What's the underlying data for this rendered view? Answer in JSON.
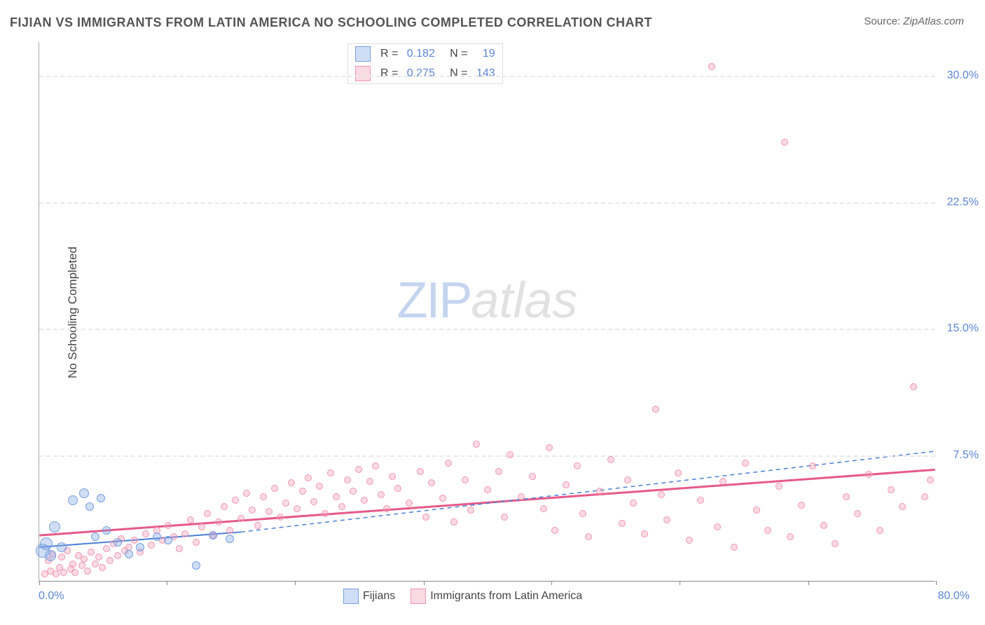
{
  "title": "FIJIAN VS IMMIGRANTS FROM LATIN AMERICA NO SCHOOLING COMPLETED CORRELATION CHART",
  "source_label": "Source:",
  "source_value": "ZipAtlas.com",
  "ylabel": "No Schooling Completed",
  "watermark_zip": "ZIP",
  "watermark_atlas": "atlas",
  "chart": {
    "type": "scatter",
    "xlim": [
      0,
      80
    ],
    "ylim": [
      0,
      32
    ],
    "xtick_positions": [
      0,
      11.4,
      22.8,
      34.3,
      45.7,
      57.1,
      68.6,
      80
    ],
    "yticks": [
      {
        "v": 30.0,
        "label": "30.0%"
      },
      {
        "v": 22.5,
        "label": "22.5%"
      },
      {
        "v": 15.0,
        "label": "15.0%"
      },
      {
        "v": 7.5,
        "label": "7.5%"
      }
    ],
    "xmin_label": "0.0%",
    "xmax_label": "80.0%",
    "background_color": "#ffffff",
    "grid_color": "#e8e8e8",
    "axis_color": "#888888",
    "tick_color": "#5b87d6"
  },
  "series": {
    "fijians": {
      "label": "Fijians",
      "fill": "rgba(120,160,225,0.35)",
      "stroke": "#7aa0e0",
      "R": "0.182",
      "N": "19",
      "trend": {
        "x1": 0,
        "y1": 2.0,
        "x2": 18,
        "y2": 2.9,
        "dash_x1": 18,
        "dash_y1": 2.9,
        "dash_x2": 80,
        "dash_y2": 7.7,
        "color": "#4b7fd6",
        "width": 2
      },
      "points": [
        {
          "x": 0.3,
          "y": 1.8,
          "r": 20
        },
        {
          "x": 0.6,
          "y": 2.2,
          "r": 18
        },
        {
          "x": 1.0,
          "y": 1.5,
          "r": 16
        },
        {
          "x": 1.4,
          "y": 3.2,
          "r": 16
        },
        {
          "x": 2.0,
          "y": 2.0,
          "r": 14
        },
        {
          "x": 3.0,
          "y": 4.8,
          "r": 14
        },
        {
          "x": 4.0,
          "y": 5.2,
          "r": 14
        },
        {
          "x": 4.5,
          "y": 4.4,
          "r": 12
        },
        {
          "x": 5.0,
          "y": 2.6,
          "r": 12
        },
        {
          "x": 5.5,
          "y": 4.9,
          "r": 12
        },
        {
          "x": 6.0,
          "y": 3.0,
          "r": 12
        },
        {
          "x": 7.0,
          "y": 2.3,
          "r": 12
        },
        {
          "x": 8.0,
          "y": 1.6,
          "r": 12
        },
        {
          "x": 9.0,
          "y": 2.0,
          "r": 12
        },
        {
          "x": 10.5,
          "y": 2.6,
          "r": 12
        },
        {
          "x": 11.5,
          "y": 2.4,
          "r": 12
        },
        {
          "x": 14.0,
          "y": 0.9,
          "r": 12
        },
        {
          "x": 15.5,
          "y": 2.7,
          "r": 12
        },
        {
          "x": 17.0,
          "y": 2.5,
          "r": 12
        }
      ]
    },
    "immigrants": {
      "label": "Immigrants from Latin America",
      "fill": "rgba(240,150,175,0.35)",
      "stroke": "#f096af",
      "R": "0.275",
      "N": "143",
      "trend": {
        "x1": 0,
        "y1": 2.7,
        "x2": 80,
        "y2": 6.6,
        "color": "#e55a88",
        "width": 3
      },
      "points": [
        {
          "x": 0.5,
          "y": 0.4,
          "r": 10
        },
        {
          "x": 0.8,
          "y": 1.2,
          "r": 10
        },
        {
          "x": 1.0,
          "y": 0.6,
          "r": 10
        },
        {
          "x": 1.2,
          "y": 1.6,
          "r": 10
        },
        {
          "x": 1.5,
          "y": 0.4,
          "r": 10
        },
        {
          "x": 1.8,
          "y": 0.8,
          "r": 10
        },
        {
          "x": 2.0,
          "y": 1.4,
          "r": 10
        },
        {
          "x": 2.2,
          "y": 0.5,
          "r": 10
        },
        {
          "x": 2.5,
          "y": 1.8,
          "r": 10
        },
        {
          "x": 2.8,
          "y": 0.7,
          "r": 10
        },
        {
          "x": 3.0,
          "y": 1.0,
          "r": 10
        },
        {
          "x": 3.2,
          "y": 0.5,
          "r": 10
        },
        {
          "x": 3.5,
          "y": 1.5,
          "r": 10
        },
        {
          "x": 3.8,
          "y": 0.9,
          "r": 10
        },
        {
          "x": 4.0,
          "y": 1.3,
          "r": 10
        },
        {
          "x": 4.3,
          "y": 0.6,
          "r": 10
        },
        {
          "x": 4.6,
          "y": 1.7,
          "r": 10
        },
        {
          "x": 5.0,
          "y": 1.0,
          "r": 10
        },
        {
          "x": 5.3,
          "y": 1.4,
          "r": 10
        },
        {
          "x": 5.6,
          "y": 0.8,
          "r": 10
        },
        {
          "x": 6.0,
          "y": 1.9,
          "r": 10
        },
        {
          "x": 6.3,
          "y": 1.2,
          "r": 10
        },
        {
          "x": 6.6,
          "y": 2.2,
          "r": 10
        },
        {
          "x": 7.0,
          "y": 1.5,
          "r": 10
        },
        {
          "x": 7.3,
          "y": 2.5,
          "r": 10
        },
        {
          "x": 7.6,
          "y": 1.8,
          "r": 10
        },
        {
          "x": 8.0,
          "y": 2.0,
          "r": 10
        },
        {
          "x": 8.5,
          "y": 2.4,
          "r": 10
        },
        {
          "x": 9.0,
          "y": 1.7,
          "r": 10
        },
        {
          "x": 9.5,
          "y": 2.8,
          "r": 10
        },
        {
          "x": 10.0,
          "y": 2.1,
          "r": 10
        },
        {
          "x": 10.5,
          "y": 3.0,
          "r": 10
        },
        {
          "x": 11.0,
          "y": 2.4,
          "r": 10
        },
        {
          "x": 11.5,
          "y": 3.3,
          "r": 10
        },
        {
          "x": 12.0,
          "y": 2.6,
          "r": 10
        },
        {
          "x": 12.5,
          "y": 1.9,
          "r": 10
        },
        {
          "x": 13.0,
          "y": 2.8,
          "r": 10
        },
        {
          "x": 13.5,
          "y": 3.6,
          "r": 10
        },
        {
          "x": 14.0,
          "y": 2.3,
          "r": 10
        },
        {
          "x": 14.5,
          "y": 3.2,
          "r": 10
        },
        {
          "x": 15.0,
          "y": 4.0,
          "r": 10
        },
        {
          "x": 15.5,
          "y": 2.7,
          "r": 10
        },
        {
          "x": 16.0,
          "y": 3.5,
          "r": 10
        },
        {
          "x": 16.5,
          "y": 4.4,
          "r": 10
        },
        {
          "x": 17.0,
          "y": 3.0,
          "r": 10
        },
        {
          "x": 17.5,
          "y": 4.8,
          "r": 10
        },
        {
          "x": 18.0,
          "y": 3.7,
          "r": 10
        },
        {
          "x": 18.5,
          "y": 5.2,
          "r": 10
        },
        {
          "x": 19.0,
          "y": 4.2,
          "r": 10
        },
        {
          "x": 19.5,
          "y": 3.3,
          "r": 10
        },
        {
          "x": 20.0,
          "y": 5.0,
          "r": 10
        },
        {
          "x": 20.5,
          "y": 4.1,
          "r": 10
        },
        {
          "x": 21.0,
          "y": 5.5,
          "r": 10
        },
        {
          "x": 21.5,
          "y": 3.8,
          "r": 10
        },
        {
          "x": 22.0,
          "y": 4.6,
          "r": 10
        },
        {
          "x": 22.5,
          "y": 5.8,
          "r": 10
        },
        {
          "x": 23.0,
          "y": 4.3,
          "r": 10
        },
        {
          "x": 23.5,
          "y": 5.3,
          "r": 10
        },
        {
          "x": 24.0,
          "y": 6.1,
          "r": 10
        },
        {
          "x": 24.5,
          "y": 4.7,
          "r": 10
        },
        {
          "x": 25.0,
          "y": 5.6,
          "r": 10
        },
        {
          "x": 25.5,
          "y": 4.0,
          "r": 10
        },
        {
          "x": 26.0,
          "y": 6.4,
          "r": 10
        },
        {
          "x": 26.5,
          "y": 5.0,
          "r": 10
        },
        {
          "x": 27.0,
          "y": 4.4,
          "r": 10
        },
        {
          "x": 27.5,
          "y": 6.0,
          "r": 10
        },
        {
          "x": 28.0,
          "y": 5.3,
          "r": 10
        },
        {
          "x": 28.5,
          "y": 6.6,
          "r": 10
        },
        {
          "x": 29.0,
          "y": 4.8,
          "r": 10
        },
        {
          "x": 29.5,
          "y": 5.9,
          "r": 10
        },
        {
          "x": 30.0,
          "y": 6.8,
          "r": 10
        },
        {
          "x": 30.5,
          "y": 5.1,
          "r": 10
        },
        {
          "x": 31.0,
          "y": 4.3,
          "r": 10
        },
        {
          "x": 31.5,
          "y": 6.2,
          "r": 10
        },
        {
          "x": 32.0,
          "y": 5.5,
          "r": 10
        },
        {
          "x": 33.0,
          "y": 4.6,
          "r": 10
        },
        {
          "x": 34.0,
          "y": 6.5,
          "r": 10
        },
        {
          "x": 34.5,
          "y": 3.8,
          "r": 10
        },
        {
          "x": 35.0,
          "y": 5.8,
          "r": 10
        },
        {
          "x": 36.0,
          "y": 4.9,
          "r": 10
        },
        {
          "x": 36.5,
          "y": 7.0,
          "r": 10
        },
        {
          "x": 37.0,
          "y": 3.5,
          "r": 10
        },
        {
          "x": 38.0,
          "y": 6.0,
          "r": 10
        },
        {
          "x": 38.5,
          "y": 4.2,
          "r": 10
        },
        {
          "x": 39.0,
          "y": 8.1,
          "r": 10
        },
        {
          "x": 40.0,
          "y": 5.4,
          "r": 10
        },
        {
          "x": 41.0,
          "y": 6.5,
          "r": 10
        },
        {
          "x": 41.5,
          "y": 3.8,
          "r": 10
        },
        {
          "x": 42.0,
          "y": 7.5,
          "r": 10
        },
        {
          "x": 43.0,
          "y": 5.0,
          "r": 10
        },
        {
          "x": 44.0,
          "y": 6.2,
          "r": 10
        },
        {
          "x": 45.0,
          "y": 4.3,
          "r": 10
        },
        {
          "x": 45.5,
          "y": 7.9,
          "r": 10
        },
        {
          "x": 46.0,
          "y": 3.0,
          "r": 10
        },
        {
          "x": 47.0,
          "y": 5.7,
          "r": 10
        },
        {
          "x": 48.0,
          "y": 6.8,
          "r": 10
        },
        {
          "x": 48.5,
          "y": 4.0,
          "r": 10
        },
        {
          "x": 49.0,
          "y": 2.6,
          "r": 10
        },
        {
          "x": 50.0,
          "y": 5.3,
          "r": 10
        },
        {
          "x": 51.0,
          "y": 7.2,
          "r": 10
        },
        {
          "x": 52.0,
          "y": 3.4,
          "r": 10
        },
        {
          "x": 52.5,
          "y": 6.0,
          "r": 10
        },
        {
          "x": 53.0,
          "y": 4.6,
          "r": 10
        },
        {
          "x": 54.0,
          "y": 2.8,
          "r": 10
        },
        {
          "x": 55.0,
          "y": 10.2,
          "r": 10
        },
        {
          "x": 55.5,
          "y": 5.1,
          "r": 10
        },
        {
          "x": 56.0,
          "y": 3.6,
          "r": 10
        },
        {
          "x": 57.0,
          "y": 6.4,
          "r": 10
        },
        {
          "x": 58.0,
          "y": 2.4,
          "r": 10
        },
        {
          "x": 59.0,
          "y": 4.8,
          "r": 10
        },
        {
          "x": 60.0,
          "y": 30.5,
          "r": 10
        },
        {
          "x": 60.5,
          "y": 3.2,
          "r": 10
        },
        {
          "x": 61.0,
          "y": 5.9,
          "r": 10
        },
        {
          "x": 62.0,
          "y": 2.0,
          "r": 10
        },
        {
          "x": 63.0,
          "y": 7.0,
          "r": 10
        },
        {
          "x": 64.0,
          "y": 4.2,
          "r": 10
        },
        {
          "x": 65.0,
          "y": 3.0,
          "r": 10
        },
        {
          "x": 66.0,
          "y": 5.6,
          "r": 10
        },
        {
          "x": 66.5,
          "y": 26.0,
          "r": 10
        },
        {
          "x": 67.0,
          "y": 2.6,
          "r": 10
        },
        {
          "x": 68.0,
          "y": 4.5,
          "r": 10
        },
        {
          "x": 69.0,
          "y": 6.8,
          "r": 10
        },
        {
          "x": 70.0,
          "y": 3.3,
          "r": 10
        },
        {
          "x": 71.0,
          "y": 2.2,
          "r": 10
        },
        {
          "x": 72.0,
          "y": 5.0,
          "r": 10
        },
        {
          "x": 73.0,
          "y": 4.0,
          "r": 10
        },
        {
          "x": 74.0,
          "y": 6.3,
          "r": 10
        },
        {
          "x": 75.0,
          "y": 3.0,
          "r": 10
        },
        {
          "x": 76.0,
          "y": 5.4,
          "r": 10
        },
        {
          "x": 77.0,
          "y": 4.4,
          "r": 10
        },
        {
          "x": 78.0,
          "y": 11.5,
          "r": 10
        },
        {
          "x": 79.0,
          "y": 5.0,
          "r": 10
        },
        {
          "x": 79.5,
          "y": 6.0,
          "r": 10
        }
      ]
    }
  }
}
